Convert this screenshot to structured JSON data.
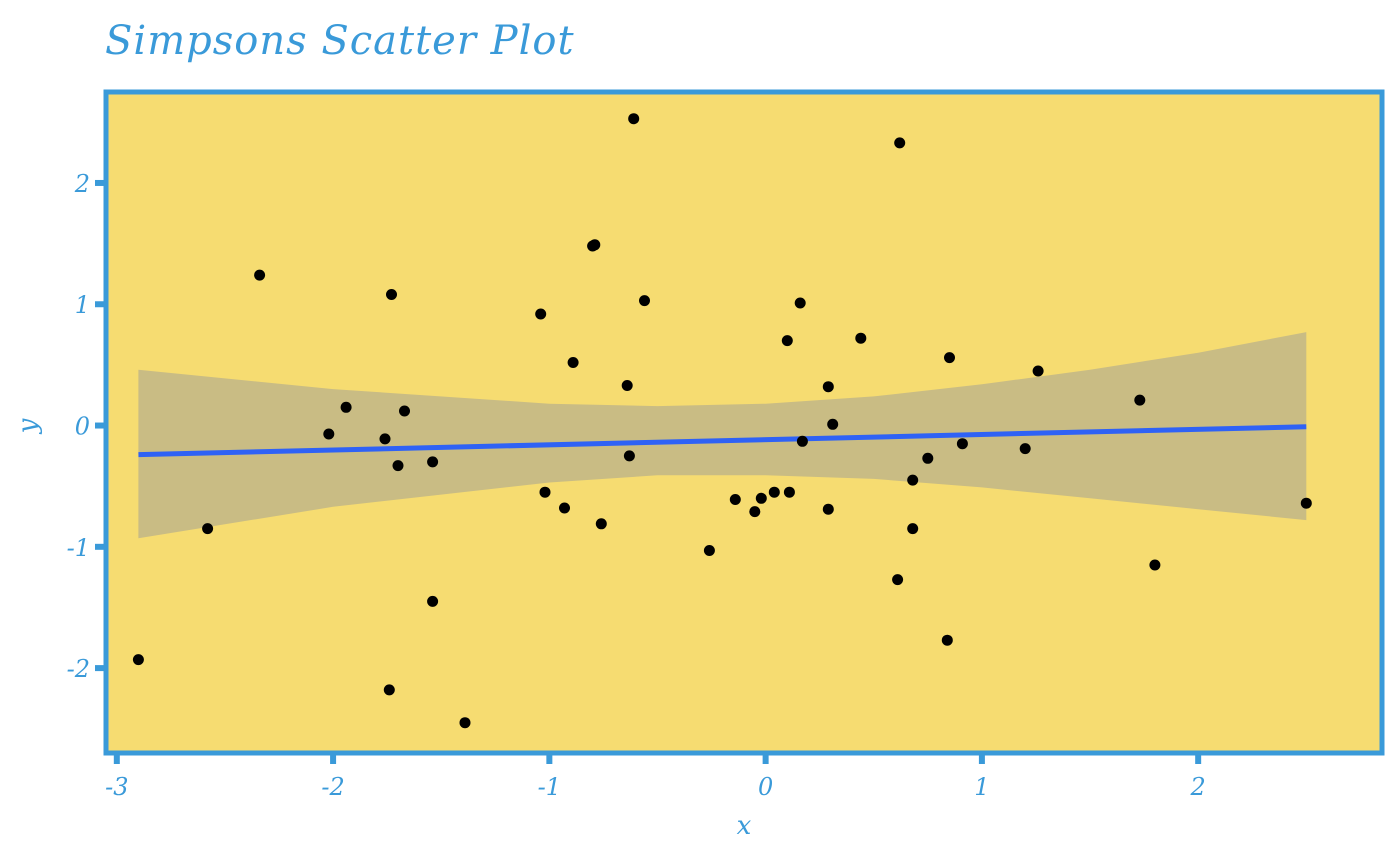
{
  "chart_data": {
    "type": "scatter",
    "title": "Simpsons Scatter Plot",
    "xlabel": "x",
    "ylabel": "y",
    "xlim": [
      -3.05,
      2.85
    ],
    "ylim": [
      -2.7,
      2.75
    ],
    "x_ticks": [
      -3,
      -2,
      -1,
      0,
      1,
      2
    ],
    "x_tick_labels": [
      "-3",
      "-2",
      "-1",
      "0",
      "1",
      "2"
    ],
    "y_ticks": [
      -2,
      -1,
      0,
      1,
      2
    ],
    "y_tick_labels": [
      "-2",
      "-1",
      "0",
      "1",
      "2"
    ],
    "grid": false,
    "legend": "none",
    "colors": {
      "panel_background": "#F6DC71",
      "panel_border": "#3A9AD9",
      "axis_text": "#3A9AD9",
      "points": "#000000",
      "trend_line": "#2F62F5",
      "confidence_band": "#C9BC84"
    },
    "points": [
      {
        "x": -2.9,
        "y": -1.93
      },
      {
        "x": -2.58,
        "y": -0.85
      },
      {
        "x": -2.34,
        "y": 1.24
      },
      {
        "x": -2.02,
        "y": -0.07
      },
      {
        "x": -1.94,
        "y": 0.15
      },
      {
        "x": -1.76,
        "y": -0.11
      },
      {
        "x": -1.73,
        "y": 1.08
      },
      {
        "x": -1.74,
        "y": -2.18
      },
      {
        "x": -1.7,
        "y": -0.33
      },
      {
        "x": -1.67,
        "y": 0.12
      },
      {
        "x": -1.54,
        "y": -0.3
      },
      {
        "x": -1.54,
        "y": -1.45
      },
      {
        "x": -1.39,
        "y": -2.45
      },
      {
        "x": -1.04,
        "y": 0.92
      },
      {
        "x": -1.02,
        "y": -0.55
      },
      {
        "x": -0.93,
        "y": -0.68
      },
      {
        "x": -0.89,
        "y": 0.52
      },
      {
        "x": -0.8,
        "y": 1.48
      },
      {
        "x": -0.79,
        "y": 1.49
      },
      {
        "x": -0.76,
        "y": -0.81
      },
      {
        "x": -0.64,
        "y": 0.33
      },
      {
        "x": -0.63,
        "y": -0.25
      },
      {
        "x": -0.61,
        "y": 2.53
      },
      {
        "x": -0.56,
        "y": 1.03
      },
      {
        "x": -0.26,
        "y": -1.03
      },
      {
        "x": -0.14,
        "y": -0.61
      },
      {
        "x": -0.05,
        "y": -0.71
      },
      {
        "x": -0.02,
        "y": -0.6
      },
      {
        "x": 0.04,
        "y": -0.55
      },
      {
        "x": 0.1,
        "y": 0.7
      },
      {
        "x": 0.11,
        "y": -0.55
      },
      {
        "x": 0.16,
        "y": 1.01
      },
      {
        "x": 0.17,
        "y": -0.13
      },
      {
        "x": 0.29,
        "y": 0.32
      },
      {
        "x": 0.29,
        "y": -0.69
      },
      {
        "x": 0.31,
        "y": 0.01
      },
      {
        "x": 0.44,
        "y": 0.72
      },
      {
        "x": 0.61,
        "y": -1.27
      },
      {
        "x": 0.62,
        "y": 2.33
      },
      {
        "x": 0.68,
        "y": -0.45
      },
      {
        "x": 0.68,
        "y": -0.85
      },
      {
        "x": 0.75,
        "y": -0.27
      },
      {
        "x": 0.84,
        "y": -1.77
      },
      {
        "x": 0.85,
        "y": 0.56
      },
      {
        "x": 0.91,
        "y": -0.15
      },
      {
        "x": 1.2,
        "y": -0.19
      },
      {
        "x": 1.26,
        "y": 0.45
      },
      {
        "x": 1.73,
        "y": 0.21
      },
      {
        "x": 1.8,
        "y": -1.15
      },
      {
        "x": 2.5,
        "y": -0.64
      }
    ],
    "trend_line": {
      "x": [
        -2.9,
        2.5
      ],
      "y": [
        -0.24,
        -0.01
      ]
    },
    "confidence_band": {
      "x": [
        -2.9,
        -2.0,
        -1.0,
        -0.5,
        0.0,
        0.5,
        1.0,
        1.5,
        2.0,
        2.5
      ],
      "lower": [
        -0.93,
        -0.67,
        -0.47,
        -0.41,
        -0.41,
        -0.44,
        -0.51,
        -0.6,
        -0.69,
        -0.78
      ],
      "upper": [
        0.46,
        0.3,
        0.18,
        0.16,
        0.18,
        0.24,
        0.34,
        0.46,
        0.6,
        0.77
      ]
    }
  }
}
